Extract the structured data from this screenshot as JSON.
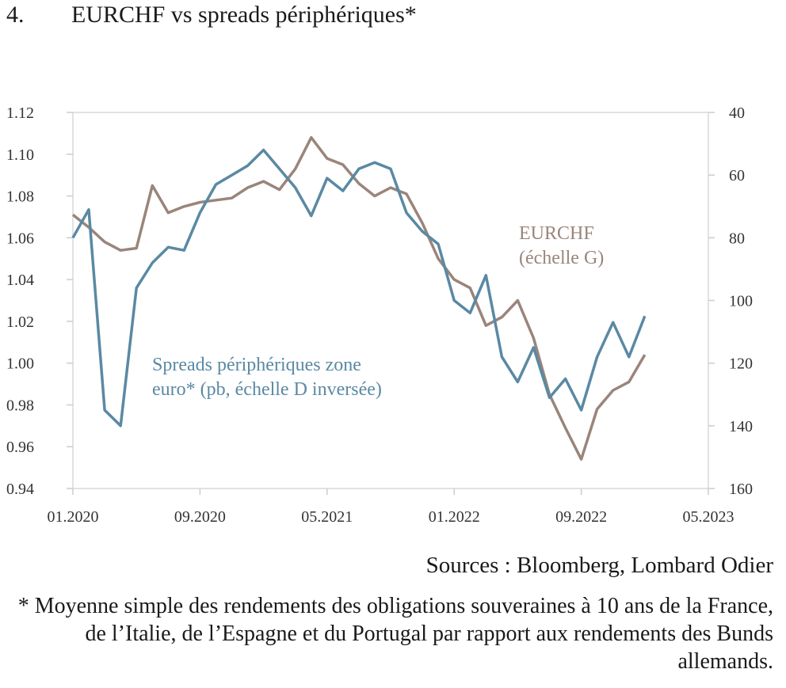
{
  "figure": {
    "number": "4.",
    "title": "EURCHF vs spreads périphériques*"
  },
  "chart_data": {
    "type": "line",
    "title": "EURCHF vs spreads périphériques*",
    "x_axis": {
      "type": "date",
      "range": [
        "2020-01",
        "2023-05"
      ],
      "tick_labels": [
        "01.2020",
        "09.2020",
        "05.2021",
        "01.2022",
        "09.2022",
        "05.2023"
      ]
    },
    "y_left": {
      "range": [
        0.94,
        1.12
      ],
      "ticks": [
        0.94,
        0.96,
        0.98,
        1.0,
        1.02,
        1.04,
        1.06,
        1.08,
        1.1,
        1.12
      ],
      "tick_labels": [
        "0.94",
        "0.96",
        "0.98",
        "1.00",
        "1.02",
        "1.04",
        "1.06",
        "1.08",
        "1.10",
        "1.12"
      ]
    },
    "y_right": {
      "range": [
        40,
        160
      ],
      "inverted": true,
      "ticks": [
        40,
        60,
        80,
        100,
        120,
        140,
        160
      ],
      "tick_labels": [
        "40",
        "60",
        "80",
        "100",
        "120",
        "140",
        "160"
      ]
    },
    "grid": false,
    "series": [
      {
        "name": "EURCHF",
        "label_lines": [
          "EURCHF",
          "(échelle G)"
        ],
        "axis": "left",
        "color": "#9a857b",
        "x": [
          "2020-01",
          "2020-02",
          "2020-03",
          "2020-04",
          "2020-05",
          "2020-06",
          "2020-07",
          "2020-08",
          "2020-09",
          "2020-10",
          "2020-11",
          "2020-12",
          "2021-01",
          "2021-02",
          "2021-03",
          "2021-04",
          "2021-05",
          "2021-06",
          "2021-07",
          "2021-08",
          "2021-09",
          "2021-10",
          "2021-11",
          "2021-12",
          "2022-01",
          "2022-02",
          "2022-03",
          "2022-04",
          "2022-05",
          "2022-06",
          "2022-07",
          "2022-08",
          "2022-09",
          "2022-10",
          "2022-11",
          "2022-12",
          "2023-01"
        ],
        "values": [
          1.071,
          1.065,
          1.058,
          1.054,
          1.055,
          1.085,
          1.072,
          1.075,
          1.077,
          1.078,
          1.079,
          1.084,
          1.087,
          1.083,
          1.093,
          1.108,
          1.098,
          1.095,
          1.086,
          1.08,
          1.084,
          1.081,
          1.067,
          1.05,
          1.04,
          1.036,
          1.018,
          1.022,
          1.03,
          1.012,
          0.985,
          0.969,
          0.954,
          0.978,
          0.987,
          0.991,
          1.004
        ]
      },
      {
        "name": "Spreads périphériques zone euro* (pb, échelle D inversée)",
        "label_lines": [
          "Spreads périphériques zone",
          "euro* (pb, échelle D inversée)"
        ],
        "axis": "right",
        "color": "#5a89a3",
        "x": [
          "2020-01",
          "2020-02",
          "2020-03",
          "2020-04",
          "2020-05",
          "2020-06",
          "2020-07",
          "2020-08",
          "2020-09",
          "2020-10",
          "2020-11",
          "2020-12",
          "2021-01",
          "2021-02",
          "2021-03",
          "2021-04",
          "2021-05",
          "2021-06",
          "2021-07",
          "2021-08",
          "2021-09",
          "2021-10",
          "2021-11",
          "2021-12",
          "2022-01",
          "2022-02",
          "2022-03",
          "2022-04",
          "2022-05",
          "2022-06",
          "2022-07",
          "2022-08",
          "2022-09",
          "2022-10",
          "2022-11",
          "2022-12",
          "2023-01"
        ],
        "values": [
          80,
          71,
          135,
          140,
          96,
          88,
          83,
          84,
          72,
          63,
          60,
          57,
          52,
          58,
          64,
          73,
          61,
          65,
          58,
          56,
          58,
          72,
          78,
          82,
          100,
          104,
          92,
          118,
          126,
          115,
          131,
          125,
          135,
          118,
          107,
          118,
          105
        ]
      }
    ]
  },
  "sources": "Sources : Bloomberg, Lombard Odier",
  "footnote": "* Moyenne simple des rendements des obligations souveraines à 10 ans de la France, de l’Italie, de l’Espagne et du Portugal par rapport aux rendements des Bunds allemands."
}
